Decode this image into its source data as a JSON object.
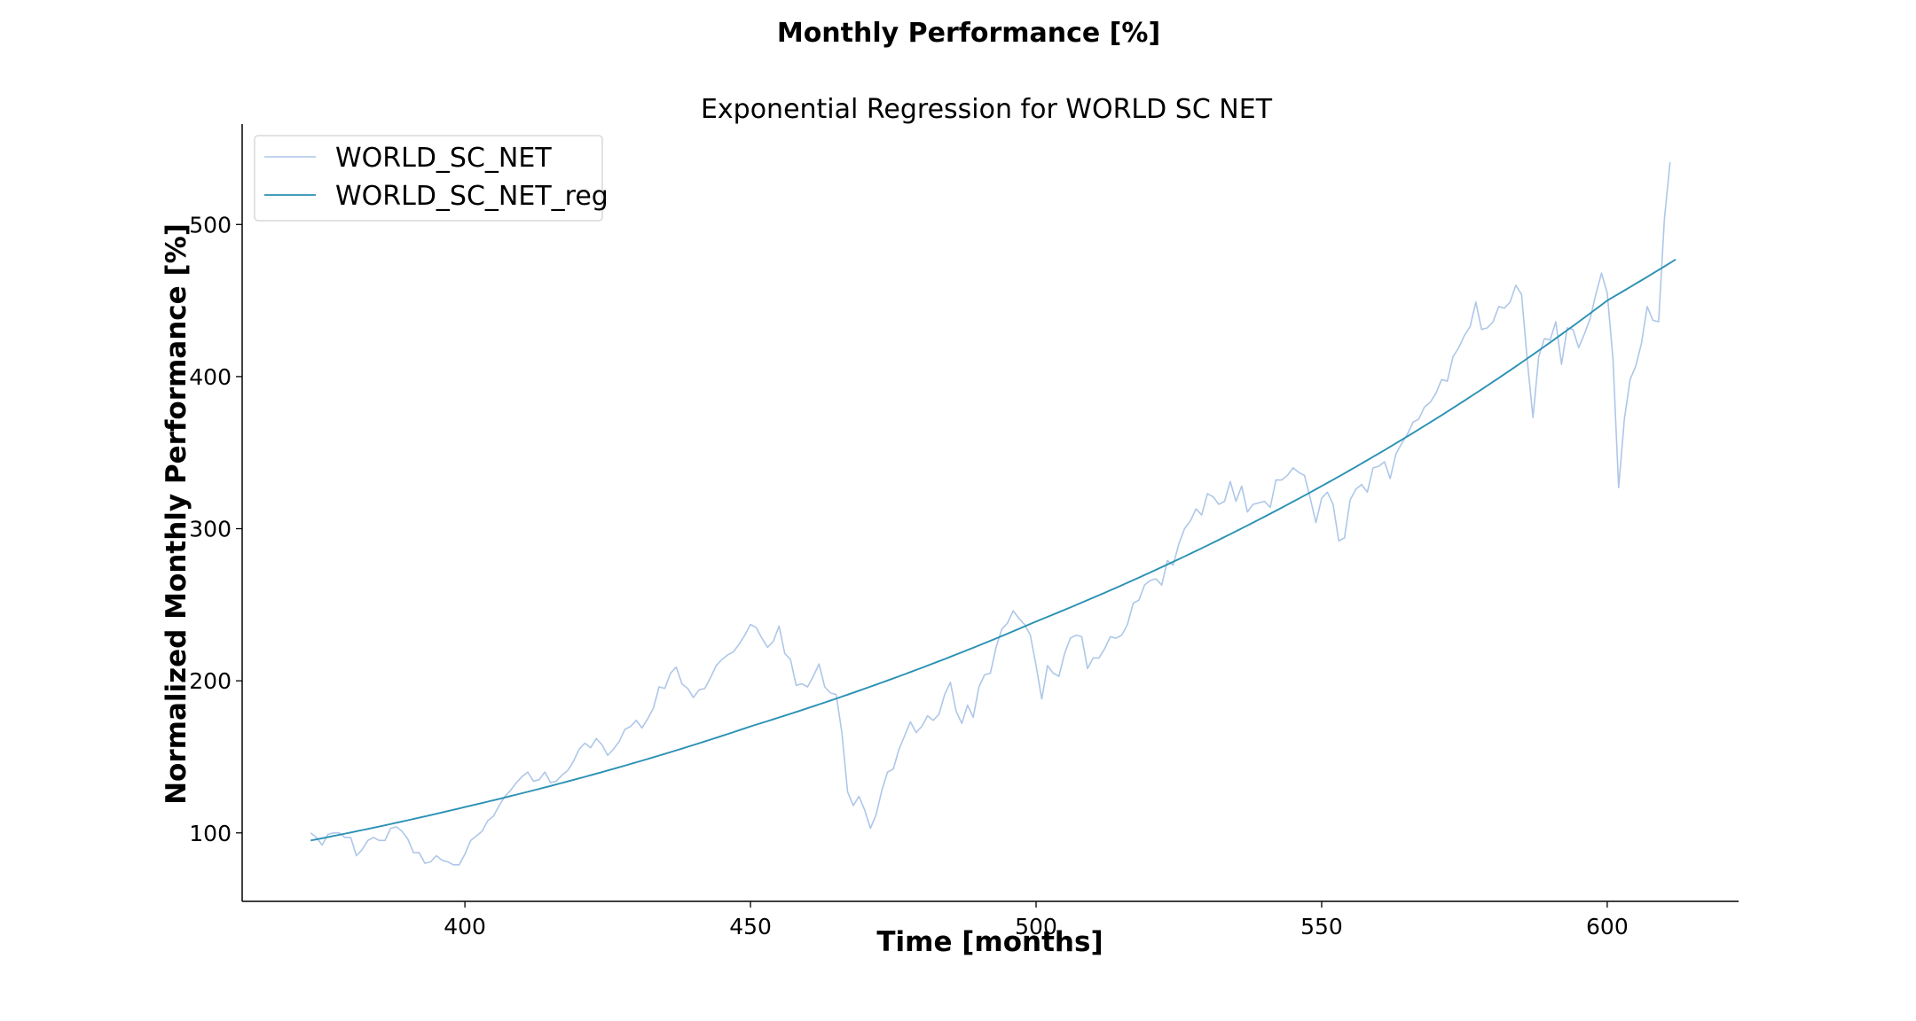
{
  "figure": {
    "suptitle": "Monthly Performance [%]"
  },
  "chart_data": {
    "type": "line",
    "title": "Exponential Regression for WORLD SC NET",
    "xlabel": "Time [months]",
    "ylabel": "Normalized Monthly Performance [%]",
    "xlim": [
      361,
      623
    ],
    "ylim": [
      55,
      566
    ],
    "xticks": [
      400,
      450,
      500,
      550,
      600
    ],
    "yticks": [
      100,
      200,
      300,
      400,
      500
    ],
    "grid": false,
    "legend_position": "upper-left",
    "series": [
      {
        "name": "WORLD_SC_NET",
        "color": "#aec7e8",
        "x_start": 373,
        "x_step": 1,
        "values": [
          100,
          97,
          92,
          99,
          100,
          100,
          97,
          97,
          85,
          89,
          95,
          97,
          95,
          95,
          103,
          104,
          101,
          96,
          87,
          87,
          80,
          81,
          85,
          82,
          81,
          79,
          79,
          86,
          95,
          98,
          101,
          108,
          111,
          118,
          124,
          128,
          133,
          137,
          140,
          134,
          135,
          140,
          133,
          134,
          138,
          141,
          147,
          155,
          159,
          156,
          162,
          158,
          151,
          155,
          160,
          168,
          170,
          174,
          169,
          175,
          182,
          196,
          195,
          205,
          209,
          198,
          195,
          189,
          194,
          195,
          202,
          210,
          214,
          217,
          219,
          224,
          230,
          237,
          235,
          228,
          222,
          226,
          236,
          218,
          214,
          197,
          198,
          196,
          203,
          211,
          196,
          192,
          191,
          166,
          127,
          118,
          124,
          115,
          103,
          112,
          128,
          140,
          142,
          155,
          164,
          173,
          166,
          170,
          177,
          174,
          178,
          191,
          199,
          180,
          172,
          184,
          176,
          196,
          204,
          205,
          222,
          234,
          238,
          246,
          241,
          237,
          230,
          210,
          188,
          210,
          205,
          203,
          218,
          228,
          230,
          229,
          208,
          215,
          215,
          221,
          229,
          228,
          230,
          237,
          251,
          253,
          263,
          266,
          267,
          263,
          279,
          276,
          290,
          300,
          305,
          313,
          309,
          323,
          321,
          316,
          318,
          331,
          318,
          328,
          311,
          316,
          317,
          318,
          314,
          332,
          332,
          335,
          340,
          337,
          335,
          320,
          304,
          320,
          324,
          316,
          292,
          294,
          319,
          326,
          329,
          324,
          340,
          341,
          344,
          333,
          349,
          356,
          362,
          370,
          372,
          380,
          383,
          389,
          398,
          397,
          413,
          419,
          427,
          433,
          449,
          431,
          432,
          436,
          446,
          445,
          449,
          460,
          454,
          411,
          373,
          413,
          425,
          424,
          436,
          408,
          432,
          431,
          419,
          428,
          438,
          454,
          468,
          455,
          412,
          327,
          372,
          398,
          407,
          422,
          446,
          437,
          436,
          503,
          541
        ]
      },
      {
        "name": "WORLD_SC_NET_reg",
        "color": "#2b91b4",
        "x": [
          373,
          400,
          450,
          500,
          550,
          600,
          612
        ],
        "values": [
          95,
          117,
          170,
          239,
          328,
          450,
          477
        ]
      }
    ]
  }
}
